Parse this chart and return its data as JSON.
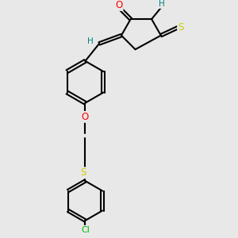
{
  "background_color": "#e8e8e8",
  "bond_color": "#000000",
  "atom_colors": {
    "O": "#ff0000",
    "N": "#0066cc",
    "S_yellow": "#cccc00",
    "S_ring": "#008080",
    "Cl": "#00bb00",
    "H": "#008080",
    "C": "#000000"
  },
  "figsize": [
    3.0,
    3.0
  ],
  "dpi": 100,
  "lw": 1.5,
  "xlim": [
    0,
    10
  ],
  "ylim": [
    0,
    10
  ]
}
